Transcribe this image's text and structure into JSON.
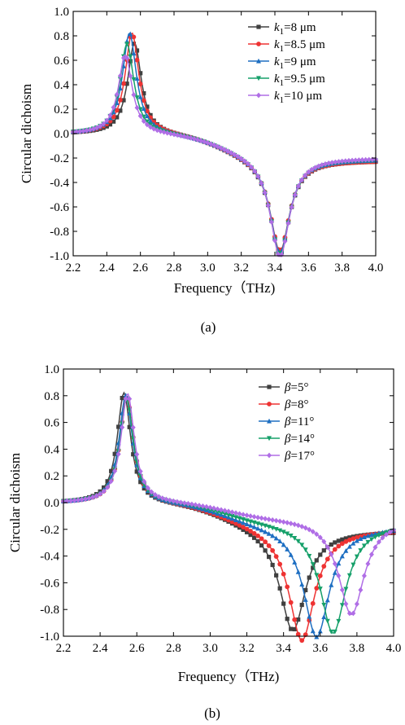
{
  "chart_data": [
    {
      "type": "line",
      "panel_label": "(a)",
      "xlabel": "Frequency（THz)",
      "ylabel": "Circular  dichoism",
      "xlim": [
        2.2,
        4.0
      ],
      "ylim": [
        -1.0,
        1.0
      ],
      "xticks": [
        "2.2",
        "2.4",
        "2.6",
        "2.8",
        "3.0",
        "3.2",
        "3.4",
        "3.6",
        "3.8",
        "4.0"
      ],
      "yticks": [
        "1.0",
        "0.8",
        "0.6",
        "0.4",
        "0.2",
        "0.0",
        "-0.2",
        "-0.4",
        "-0.6",
        "-0.8",
        "-1.0"
      ],
      "legend_position": "top-right",
      "series": [
        {
          "name": "k1=8 μm",
          "var": "k",
          "sub": "1",
          "rest": "=8 μm",
          "color": "#404040",
          "marker": "square",
          "p1": 2.565,
          "a1": 0.75,
          "w1": 0.05,
          "p2": 3.43,
          "a2": 0.78,
          "w2": 0.07,
          "end": -0.22
        },
        {
          "name": "k1=8.5 μm",
          "var": "k",
          "sub": "1",
          "rest": "=8.5 μm",
          "color": "#ee3333",
          "marker": "circle",
          "p1": 2.55,
          "a1": 0.83,
          "w1": 0.05,
          "p2": 3.43,
          "a2": 0.76,
          "w2": 0.07,
          "end": -0.22
        },
        {
          "name": "k1=9 μm",
          "var": "k",
          "sub": "1",
          "rest": "=9 μm",
          "color": "#1e6fc2",
          "marker": "triangle-up",
          "p1": 2.535,
          "a1": 0.83,
          "w1": 0.05,
          "p2": 3.43,
          "a2": 0.78,
          "w2": 0.07,
          "end": -0.21
        },
        {
          "name": "k1=9.5 μm",
          "var": "k",
          "sub": "1",
          "rest": "=9.5 μm",
          "color": "#16a06a",
          "marker": "triangle-down",
          "p1": 2.52,
          "a1": 0.74,
          "w1": 0.05,
          "p2": 3.43,
          "a2": 0.8,
          "w2": 0.07,
          "end": -0.21
        },
        {
          "name": "k1=10 μm",
          "var": "k",
          "sub": "1",
          "rest": "=10 μm",
          "color": "#b06ee6",
          "marker": "diamond",
          "p1": 2.51,
          "a1": 0.65,
          "w1": 0.05,
          "p2": 3.43,
          "a2": 0.82,
          "w2": 0.07,
          "end": -0.2
        }
      ]
    },
    {
      "type": "line",
      "panel_label": "(b)",
      "xlabel": "Frequency（THz)",
      "ylabel": "Circular  dichoism",
      "xlim": [
        2.2,
        4.0
      ],
      "ylim": [
        -1.0,
        1.0
      ],
      "xticks": [
        "2.2",
        "2.4",
        "2.6",
        "2.8",
        "3.0",
        "3.2",
        "3.4",
        "3.6",
        "3.8",
        "4.0"
      ],
      "yticks": [
        "1.0",
        "0.8",
        "0.6",
        "0.4",
        "0.2",
        "0.0",
        "-0.2",
        "-0.4",
        "-0.6",
        "-0.8",
        "-1.0"
      ],
      "legend_position": "top-right",
      "series": [
        {
          "name": "β=5°",
          "var": "β",
          "sub": "",
          "rest": "=5°",
          "color": "#404040",
          "marker": "square",
          "p1": 2.53,
          "a1": 0.83,
          "w1": 0.045,
          "p2": 3.45,
          "a2": 0.76,
          "w2": 0.085,
          "end": -0.21
        },
        {
          "name": "β=8°",
          "var": "β",
          "sub": "",
          "rest": "=8°",
          "color": "#ee3333",
          "marker": "circle",
          "p1": 2.545,
          "a1": 0.8,
          "w1": 0.045,
          "p2": 3.5,
          "a2": 0.84,
          "w2": 0.085,
          "end": -0.2
        },
        {
          "name": "β=11°",
          "var": "β",
          "sub": "",
          "rest": "=11°",
          "color": "#1e6fc2",
          "marker": "triangle-up",
          "p1": 2.54,
          "a1": 0.81,
          "w1": 0.045,
          "p2": 3.58,
          "a2": 0.83,
          "w2": 0.085,
          "end": -0.18
        },
        {
          "name": "β=14°",
          "var": "β",
          "sub": "",
          "rest": "=14°",
          "color": "#16a06a",
          "marker": "triangle-down",
          "p1": 2.545,
          "a1": 0.78,
          "w1": 0.045,
          "p2": 3.67,
          "a2": 0.82,
          "w2": 0.085,
          "end": -0.16
        },
        {
          "name": "β=17°",
          "var": "β",
          "sub": "",
          "rest": "=17°",
          "color": "#b06ee6",
          "marker": "diamond",
          "p1": 2.55,
          "a1": 0.82,
          "w1": 0.045,
          "p2": 3.77,
          "a2": 0.72,
          "w2": 0.085,
          "end": -0.12
        }
      ]
    }
  ]
}
